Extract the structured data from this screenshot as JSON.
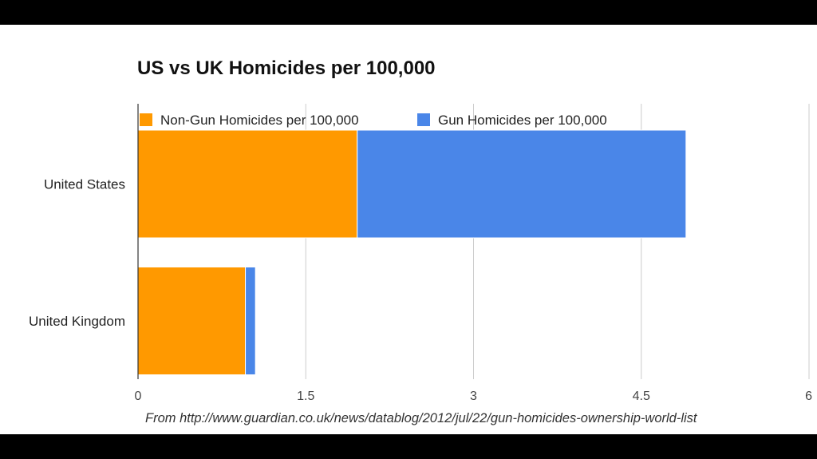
{
  "chart_data": {
    "type": "bar",
    "orientation": "horizontal",
    "stacked": true,
    "title": "US vs UK Homicides per 100,000",
    "categories": [
      "United States",
      "United Kingdom"
    ],
    "series": [
      {
        "name": "Non-Gun Homicides per 100,000",
        "color": "#ff9900",
        "values": [
          1.96,
          0.96
        ]
      },
      {
        "name": "Gun Homicides per 100,000",
        "color": "#4a86e8",
        "values": [
          2.94,
          0.09
        ]
      }
    ],
    "xlim": [
      0,
      6
    ],
    "xticks": [
      0,
      1.5,
      3,
      4.5,
      6
    ],
    "xtick_labels": [
      "0",
      "1.5",
      "3",
      "4.5",
      "6"
    ],
    "grid": true,
    "legend_position": "top"
  },
  "source_note": "From http://www.guardian.co.uk/news/datablog/2012/jul/22/gun-homicides-ownership-world-list"
}
